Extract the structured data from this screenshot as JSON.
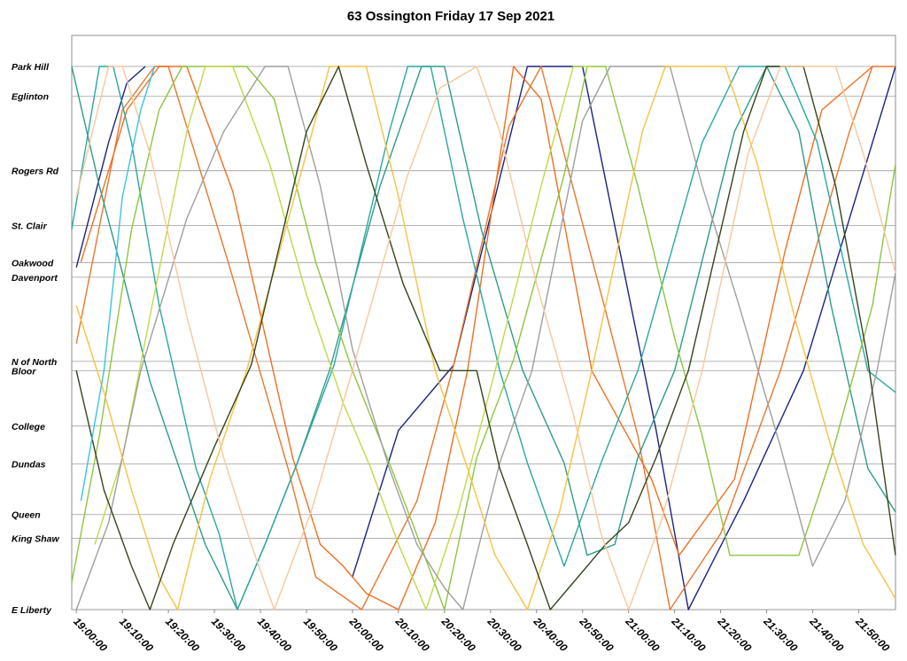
{
  "chart_data": {
    "type": "line",
    "title": "63 Ossington Friday 17 Sep 2021",
    "xlabel": "",
    "ylabel": "",
    "grid": true,
    "legend": "none",
    "x_range": [
      "18:59:00",
      "21:58:00"
    ],
    "x_ticks": [
      "19:00:00",
      "19:10:00",
      "19:20:00",
      "19:30:00",
      "19:40:00",
      "19:50:00",
      "20:00:00",
      "20:10:00",
      "20:20:00",
      "20:30:00",
      "20:40:00",
      "20:50:00",
      "21:00:00",
      "21:10:00",
      "21:20:00",
      "21:30:00",
      "21:40:00",
      "21:50:00"
    ],
    "y_axis": {
      "type": "stops",
      "stops": [
        {
          "name": "Park Hill",
          "pos": 100
        },
        {
          "name": "Eglinton",
          "pos": 94.5
        },
        {
          "name": "Rogers Rd",
          "pos": 80.8
        },
        {
          "name": "St. Clair",
          "pos": 70.7
        },
        {
          "name": "Oakwood",
          "pos": 63.9
        },
        {
          "name": "Davenport",
          "pos": 61.2
        },
        {
          "name": "N of North",
          "pos": 45.7
        },
        {
          "name": "Bloor",
          "pos": 44.0
        },
        {
          "name": "College",
          "pos": 33.8
        },
        {
          "name": "Dundas",
          "pos": 26.8
        },
        {
          "name": "Queen",
          "pos": 17.5
        },
        {
          "name": "King Shaw",
          "pos": 13.1
        },
        {
          "name": "E Liberty",
          "pos": 0
        }
      ]
    },
    "colors": [
      "#1a237e",
      "#e8772e",
      "#2e9b87",
      "#8dc63f",
      "#9e9e9e",
      "#f5c242",
      "#33451b",
      "#f9c79a",
      "#2aa7a0",
      "#38c4e0",
      "#f06f21",
      "#c0d84a"
    ],
    "series": [
      {
        "color": "#1a237e",
        "points": [
          [
            "19:00",
            63
          ],
          [
            "19:07",
            86
          ],
          [
            "19:11",
            97
          ],
          [
            "19:15",
            100
          ]
        ]
      },
      {
        "color": "#1a237e",
        "points": [
          [
            "20:00",
            6
          ],
          [
            "20:10",
            33
          ],
          [
            "20:22",
            45
          ],
          [
            "20:38",
            100
          ],
          [
            "20:50",
            100
          ],
          [
            "21:06",
            33
          ],
          [
            "21:13",
            0
          ],
          [
            "21:25",
            20
          ],
          [
            "21:38",
            44
          ],
          [
            "21:58",
            100
          ]
        ]
      },
      {
        "color": "#e8772e",
        "points": [
          [
            "19:00",
            49
          ],
          [
            "19:10",
            92
          ],
          [
            "19:17",
            100
          ],
          [
            "19:20",
            100
          ],
          [
            "19:33",
            64
          ],
          [
            "19:46",
            26
          ],
          [
            "19:52",
            6
          ],
          [
            "20:02",
            0
          ],
          [
            "20:14",
            20
          ],
          [
            "20:22",
            45
          ],
          [
            "20:34",
            89
          ],
          [
            "20:41",
            100
          ],
          [
            "20:55",
            55
          ],
          [
            "21:02",
            32
          ],
          [
            "21:09",
            0
          ],
          [
            "21:20",
            14
          ],
          [
            "21:33",
            44
          ],
          [
            "21:48",
            88
          ],
          [
            "21:53",
            100
          ],
          [
            "21:58",
            100
          ]
        ]
      },
      {
        "color": "#f06f21",
        "points": [
          [
            "19:01",
            64
          ],
          [
            "19:11",
            92
          ],
          [
            "19:18",
            100
          ],
          [
            "19:24",
            100
          ],
          [
            "19:34",
            77
          ],
          [
            "19:47",
            28
          ],
          [
            "19:53",
            12
          ],
          [
            "19:58",
            8
          ],
          [
            "20:03",
            3
          ],
          [
            "20:10",
            0
          ],
          [
            "20:18",
            16
          ],
          [
            "20:25",
            44
          ],
          [
            "20:35",
            100
          ],
          [
            "20:41",
            94
          ],
          [
            "20:52",
            44
          ],
          [
            "21:05",
            24
          ],
          [
            "21:11",
            10
          ],
          [
            "21:23",
            24
          ],
          [
            "21:34",
            66
          ],
          [
            "21:42",
            92
          ],
          [
            "21:53",
            100
          ]
        ]
      },
      {
        "color": "#2e9b87",
        "points": [
          [
            "18:59",
            100
          ],
          [
            "19:05",
            78
          ],
          [
            "19:10",
            62
          ],
          [
            "19:16",
            42
          ],
          [
            "19:22",
            27
          ],
          [
            "19:28",
            12
          ],
          [
            "19:35",
            0
          ],
          [
            "19:41",
            12
          ],
          [
            "19:48",
            27
          ],
          [
            "19:55",
            44
          ],
          [
            "20:06",
            78
          ],
          [
            "20:15",
            100
          ],
          [
            "20:20",
            100
          ],
          [
            "20:28",
            70
          ],
          [
            "20:37",
            44
          ],
          [
            "20:46",
            27
          ],
          [
            "20:51",
            10
          ],
          [
            "20:57",
            12
          ],
          [
            "21:02",
            28
          ],
          [
            "21:10",
            44
          ],
          [
            "21:23",
            88
          ],
          [
            "21:30",
            100
          ],
          [
            "21:37",
            88
          ],
          [
            "21:44",
            56
          ],
          [
            "21:52",
            26
          ],
          [
            "21:58",
            18
          ]
        ]
      },
      {
        "color": "#2aa7a0",
        "points": [
          [
            "18:59",
            70
          ],
          [
            "19:05",
            100
          ],
          [
            "19:08",
            100
          ],
          [
            "19:12",
            86
          ],
          [
            "19:18",
            56
          ],
          [
            "19:26",
            26
          ],
          [
            "19:31",
            14
          ],
          [
            "19:35",
            0
          ],
          [
            "19:41",
            12
          ],
          [
            "19:48",
            27
          ],
          [
            "19:56",
            45
          ],
          [
            "20:08",
            88
          ],
          [
            "20:12",
            100
          ],
          [
            "20:17",
            100
          ],
          [
            "20:24",
            72
          ],
          [
            "20:32",
            44
          ],
          [
            "20:38",
            27
          ],
          [
            "20:46",
            8
          ],
          [
            "20:54",
            27
          ],
          [
            "21:02",
            44
          ],
          [
            "21:16",
            86
          ],
          [
            "21:24",
            100
          ],
          [
            "21:34",
            100
          ],
          [
            "21:41",
            86
          ],
          [
            "21:52",
            44
          ],
          [
            "21:58",
            40
          ]
        ]
      },
      {
        "color": "#8dc63f",
        "points": [
          [
            "18:59",
            5
          ],
          [
            "19:05",
            32
          ],
          [
            "19:12",
            70
          ],
          [
            "19:18",
            92
          ],
          [
            "19:23",
            100
          ],
          [
            "19:37",
            100
          ],
          [
            "19:43",
            94
          ],
          [
            "19:52",
            64
          ],
          [
            "20:00",
            44
          ],
          [
            "20:08",
            27
          ],
          [
            "20:13",
            16
          ],
          [
            "20:20",
            0
          ],
          [
            "20:27",
            28
          ],
          [
            "20:35",
            46
          ],
          [
            "20:46",
            80
          ],
          [
            "20:51",
            100
          ],
          [
            "20:55",
            100
          ],
          [
            "21:02",
            78
          ],
          [
            "21:10",
            50
          ],
          [
            "21:16",
            32
          ],
          [
            "21:22",
            10
          ],
          [
            "21:37",
            10
          ],
          [
            "21:44",
            28
          ],
          [
            "21:53",
            56
          ],
          [
            "21:58",
            82
          ]
        ]
      },
      {
        "color": "#c0d84a",
        "points": [
          [
            "19:04",
            12
          ],
          [
            "19:10",
            28
          ],
          [
            "19:16",
            54
          ],
          [
            "19:24",
            88
          ],
          [
            "19:28",
            100
          ],
          [
            "19:34",
            100
          ],
          [
            "19:42",
            82
          ],
          [
            "19:50",
            58
          ],
          [
            "19:58",
            38
          ],
          [
            "20:04",
            26
          ],
          [
            "20:10",
            12
          ],
          [
            "20:16",
            0
          ],
          [
            "20:23",
            18
          ],
          [
            "20:31",
            44
          ],
          [
            "20:41",
            78
          ],
          [
            "20:48",
            100
          ],
          [
            "20:52",
            100
          ]
        ]
      },
      {
        "color": "#9e9e9e",
        "points": [
          [
            "19:00",
            0
          ],
          [
            "19:07",
            16
          ],
          [
            "19:14",
            44
          ],
          [
            "19:24",
            72
          ],
          [
            "19:32",
            88
          ],
          [
            "19:41",
            100
          ],
          [
            "19:46",
            100
          ],
          [
            "19:53",
            78
          ],
          [
            "20:00",
            48
          ],
          [
            "20:08",
            26
          ],
          [
            "20:14",
            12
          ],
          [
            "20:20",
            4
          ],
          [
            "20:24",
            0
          ],
          [
            "20:32",
            27
          ],
          [
            "20:39",
            44
          ],
          [
            "20:50",
            90
          ],
          [
            "20:56",
            100
          ],
          [
            "21:09",
            100
          ],
          [
            "21:16",
            78
          ],
          [
            "21:24",
            56
          ],
          [
            "21:33",
            30
          ],
          [
            "21:40",
            8
          ],
          [
            "21:47",
            20
          ],
          [
            "21:54",
            44
          ],
          [
            "21:58",
            62
          ]
        ]
      },
      {
        "color": "#f5c242",
        "points": [
          [
            "19:00",
            56
          ],
          [
            "19:06",
            40
          ],
          [
            "19:12",
            22
          ],
          [
            "19:18",
            6
          ],
          [
            "19:22",
            0
          ],
          [
            "19:29",
            24
          ],
          [
            "19:37",
            44
          ],
          [
            "19:50",
            84
          ],
          [
            "19:55",
            100
          ],
          [
            "20:03",
            100
          ],
          [
            "20:10",
            76
          ],
          [
            "20:18",
            44
          ],
          [
            "20:25",
            26
          ],
          [
            "20:31",
            10
          ],
          [
            "20:38",
            0
          ],
          [
            "20:45",
            18
          ],
          [
            "20:52",
            44
          ],
          [
            "21:03",
            88
          ],
          [
            "21:08",
            100
          ],
          [
            "21:21",
            100
          ],
          [
            "21:28",
            82
          ],
          [
            "21:36",
            54
          ],
          [
            "21:44",
            30
          ],
          [
            "21:51",
            12
          ],
          [
            "21:58",
            2
          ]
        ]
      },
      {
        "color": "#33451b",
        "points": [
          [
            "19:00",
            44
          ],
          [
            "19:06",
            22
          ],
          [
            "19:12",
            8
          ],
          [
            "19:16",
            0
          ],
          [
            "19:21",
            12
          ],
          [
            "19:30",
            30
          ],
          [
            "19:38",
            45
          ],
          [
            "19:50",
            88
          ],
          [
            "19:57",
            100
          ],
          [
            "20:03",
            82
          ],
          [
            "20:11",
            60
          ],
          [
            "20:19",
            44
          ],
          [
            "20:27",
            44
          ],
          [
            "20:32",
            26
          ],
          [
            "20:38",
            12
          ],
          [
            "20:43",
            0
          ],
          [
            "20:51",
            8
          ],
          [
            "20:55",
            12
          ],
          [
            "21:00",
            16
          ],
          [
            "21:06",
            28
          ],
          [
            "21:13",
            44
          ],
          [
            "21:25",
            88
          ],
          [
            "21:30",
            100
          ],
          [
            "21:38",
            100
          ],
          [
            "21:45",
            78
          ],
          [
            "21:52",
            46
          ],
          [
            "21:58",
            10
          ]
        ]
      },
      {
        "color": "#f9c79a",
        "points": [
          [
            "19:00",
            76
          ],
          [
            "19:07",
            100
          ],
          [
            "19:10",
            100
          ],
          [
            "19:16",
            84
          ],
          [
            "19:24",
            54
          ],
          [
            "19:32",
            28
          ],
          [
            "19:38",
            12
          ],
          [
            "19:43",
            0
          ],
          [
            "19:51",
            18
          ],
          [
            "20:00",
            44
          ],
          [
            "20:12",
            80
          ],
          [
            "20:19",
            96
          ],
          [
            "20:27",
            100
          ],
          [
            "20:32",
            88
          ],
          [
            "20:40",
            60
          ],
          [
            "20:48",
            36
          ],
          [
            "20:54",
            14
          ],
          [
            "21:00",
            0
          ],
          [
            "21:07",
            16
          ],
          [
            "21:16",
            44
          ],
          [
            "21:26",
            84
          ],
          [
            "21:33",
            100
          ],
          [
            "21:45",
            100
          ],
          [
            "21:51",
            84
          ],
          [
            "21:58",
            62
          ]
        ]
      },
      {
        "color": "#38c4e0",
        "points": [
          [
            "19:01",
            20
          ],
          [
            "19:06",
            44
          ],
          [
            "19:10",
            76
          ],
          [
            "19:14",
            92
          ],
          [
            "19:17",
            100
          ]
        ]
      }
    ]
  }
}
